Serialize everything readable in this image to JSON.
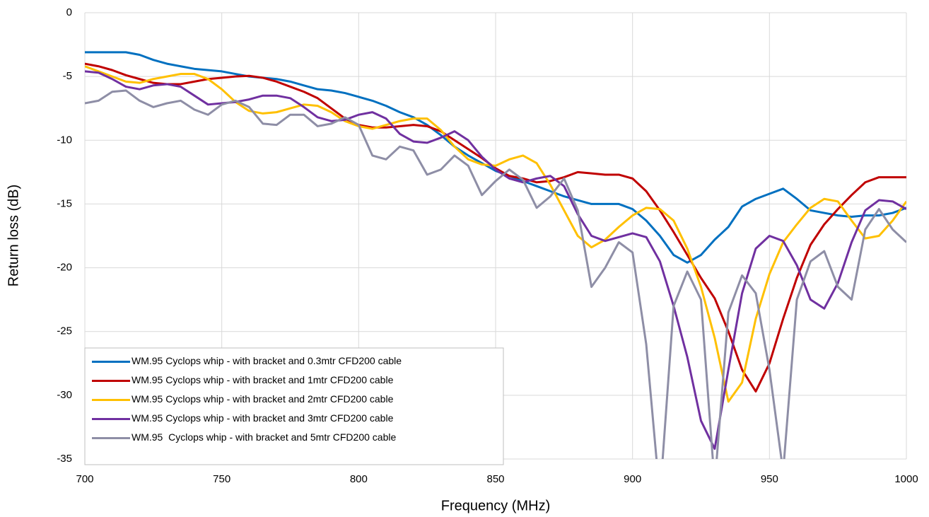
{
  "chart_data": {
    "type": "line",
    "x_label": "Frequency (MHz)",
    "y_label": "Return loss (dB)",
    "x": [
      700,
      705,
      710,
      715,
      720,
      725,
      730,
      735,
      740,
      745,
      750,
      755,
      760,
      765,
      770,
      775,
      780,
      785,
      790,
      795,
      800,
      805,
      810,
      815,
      820,
      825,
      830,
      835,
      840,
      845,
      850,
      855,
      860,
      865,
      870,
      875,
      880,
      885,
      890,
      895,
      900,
      905,
      910,
      915,
      920,
      925,
      930,
      935,
      940,
      945,
      950,
      955,
      960,
      965,
      970,
      975,
      980,
      985,
      990,
      995,
      1000
    ],
    "xlim": [
      700,
      1000
    ],
    "xticks": [
      700,
      750,
      800,
      850,
      900,
      950,
      1000
    ],
    "ylim": [
      -35,
      0
    ],
    "yticks": [
      0,
      -5,
      -10,
      -15,
      -20,
      -25,
      -30,
      -35
    ],
    "grid": true,
    "legend": "lower left",
    "series": [
      {
        "name": "WM.95 Cyclops whip - with bracket and 0.3mtr CFD200 cable",
        "color": "#0070c0",
        "values": [
          -3.1,
          -3.1,
          -3.1,
          -3.1,
          -3.3,
          -3.7,
          -4.0,
          -4.2,
          -4.4,
          -4.5,
          -4.6,
          -4.8,
          -5.0,
          -5.1,
          -5.2,
          -5.4,
          -5.7,
          -6.0,
          -6.1,
          -6.3,
          -6.6,
          -6.9,
          -7.3,
          -7.8,
          -8.2,
          -8.8,
          -9.6,
          -10.5,
          -11.2,
          -11.8,
          -12.4,
          -12.8,
          -13.2,
          -13.6,
          -14.0,
          -14.4,
          -14.7,
          -15.0,
          -15.0,
          -15.0,
          -15.4,
          -16.3,
          -17.5,
          -19.0,
          -19.6,
          -19.0,
          -17.8,
          -16.8,
          -15.2,
          -14.6,
          -14.2,
          -13.8,
          -14.6,
          -15.5,
          -15.7,
          -15.9,
          -16.0,
          -15.9,
          -15.9,
          -15.7,
          -15.3
        ]
      },
      {
        "name": "WM.95 Cyclops whip - with bracket and 1mtr CFD200 cable",
        "color": "#c00000",
        "values": [
          -4.0,
          -4.2,
          -4.5,
          -4.9,
          -5.2,
          -5.5,
          -5.6,
          -5.6,
          -5.4,
          -5.2,
          -5.1,
          -5.0,
          -4.95,
          -5.1,
          -5.4,
          -5.8,
          -6.2,
          -6.7,
          -7.5,
          -8.3,
          -8.8,
          -9.0,
          -9.0,
          -8.9,
          -8.8,
          -8.9,
          -9.3,
          -10.0,
          -10.7,
          -11.4,
          -12.2,
          -12.8,
          -13.0,
          -13.3,
          -13.2,
          -12.9,
          -12.5,
          -12.6,
          -12.7,
          -12.7,
          -13.0,
          -14.0,
          -15.5,
          -17.2,
          -19.0,
          -20.8,
          -22.4,
          -25.0,
          -28.0,
          -29.7,
          -27.5,
          -24.0,
          -20.8,
          -18.2,
          -16.6,
          -15.4,
          -14.3,
          -13.3,
          -12.9,
          -12.9,
          -12.9
        ]
      },
      {
        "name": "WM.95 Cyclops whip - with bracket and 2mtr CFD200 cable",
        "color": "#ffc000",
        "values": [
          -4.2,
          -4.6,
          -5.0,
          -5.4,
          -5.5,
          -5.2,
          -5.0,
          -4.8,
          -4.8,
          -5.2,
          -6.0,
          -7.0,
          -7.7,
          -7.9,
          -7.8,
          -7.5,
          -7.2,
          -7.3,
          -7.8,
          -8.5,
          -8.9,
          -9.1,
          -8.8,
          -8.5,
          -8.3,
          -8.3,
          -9.2,
          -10.5,
          -11.5,
          -11.9,
          -12.0,
          -11.5,
          -11.2,
          -11.8,
          -13.5,
          -15.5,
          -17.5,
          -18.4,
          -17.8,
          -16.8,
          -15.9,
          -15.3,
          -15.4,
          -16.3,
          -18.5,
          -21.5,
          -25.5,
          -30.5,
          -29.0,
          -24.0,
          -20.5,
          -18.0,
          -16.6,
          -15.3,
          -14.6,
          -14.8,
          -16.3,
          -17.7,
          -17.5,
          -16.3,
          -14.8
        ]
      },
      {
        "name": "WM.95 Cyclops whip - with bracket and 3mtr CFD200 cable",
        "color": "#7030a0",
        "values": [
          -4.6,
          -4.7,
          -5.2,
          -5.8,
          -6.0,
          -5.7,
          -5.6,
          -5.8,
          -6.5,
          -7.2,
          -7.1,
          -7.0,
          -6.8,
          -6.5,
          -6.5,
          -6.7,
          -7.4,
          -8.2,
          -8.5,
          -8.4,
          -8.0,
          -7.8,
          -8.3,
          -9.5,
          -10.1,
          -10.2,
          -9.8,
          -9.3,
          -10.0,
          -11.3,
          -12.3,
          -13.0,
          -13.3,
          -13.0,
          -12.8,
          -13.6,
          -15.8,
          -17.5,
          -17.9,
          -17.6,
          -17.3,
          -17.6,
          -19.5,
          -23.0,
          -27.0,
          -32.0,
          -34.2,
          -28.0,
          -22.0,
          -18.5,
          -17.5,
          -17.9,
          -19.8,
          -22.5,
          -23.2,
          -21.2,
          -18.0,
          -15.5,
          -14.7,
          -14.8,
          -15.4
        ]
      },
      {
        "name": "WM.95  Cyclops whip - with bracket and 5mtr CFD200 cable",
        "color": "#8e8ea6",
        "values": [
          -7.1,
          -6.9,
          -6.2,
          -6.1,
          -6.9,
          -7.4,
          -7.1,
          -6.9,
          -7.6,
          -8.0,
          -7.2,
          -6.9,
          -7.4,
          -8.7,
          -8.8,
          -8.0,
          -8.0,
          -8.9,
          -8.7,
          -8.2,
          -8.8,
          -11.2,
          -11.5,
          -10.5,
          -10.8,
          -12.7,
          -12.3,
          -11.2,
          -12.0,
          -14.3,
          -13.2,
          -12.3,
          -13.1,
          -15.3,
          -14.4,
          -13.0,
          -15.5,
          -21.5,
          -20.0,
          -18.0,
          -18.8,
          -26.0,
          -38.0,
          -23.0,
          -20.3,
          -22.5,
          -37.0,
          -23.5,
          -20.6,
          -22.0,
          -28.0,
          -36.0,
          -22.5,
          -19.5,
          -18.7,
          -21.5,
          -22.5,
          -17.0,
          -15.4,
          -17.0,
          -18.0
        ]
      }
    ]
  }
}
